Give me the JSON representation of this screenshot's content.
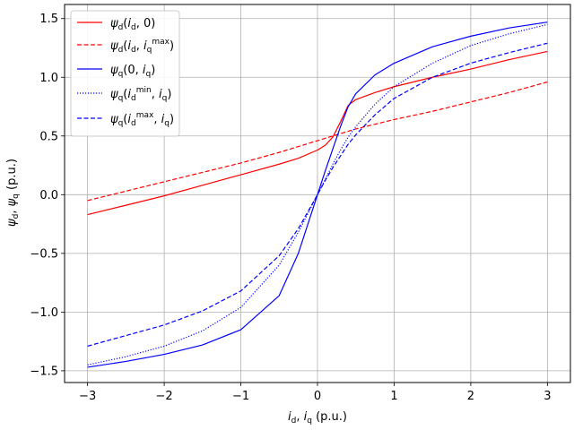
{
  "chart_data": {
    "type": "line",
    "xlabel": "i_d, i_q (p.u.)",
    "ylabel": "ψ_d, ψ_q (p.u.)",
    "xlim": [
      -3.3,
      3.3
    ],
    "ylim": [
      -1.6,
      1.62
    ],
    "xticks": [
      -3,
      -2,
      -1,
      0,
      1,
      2,
      3
    ],
    "xtick_labels": [
      "−3",
      "−2",
      "−1",
      "0",
      "1",
      "2",
      "3"
    ],
    "yticks": [
      -1.5,
      -1.0,
      -0.5,
      0.0,
      0.5,
      1.0,
      1.5
    ],
    "ytick_labels": [
      "−1.5",
      "−1.0",
      "−0.5",
      "0.0",
      "0.5",
      "1.0",
      "1.5"
    ],
    "grid": true,
    "legend_placement": "top-left",
    "x": [
      -3,
      -2.5,
      -2,
      -1.5,
      -1,
      -0.5,
      -0.25,
      0,
      0.1,
      0.2,
      0.3,
      0.4,
      0.5,
      0.75,
      1,
      1.5,
      2,
      2.5,
      3
    ],
    "series": [
      {
        "name": "ψd(id, 0)",
        "color": "#ff0000",
        "dash": "solid",
        "values": [
          -0.17,
          -0.09,
          -0.01,
          0.08,
          0.17,
          0.26,
          0.31,
          0.38,
          0.42,
          0.49,
          0.62,
          0.76,
          0.81,
          0.87,
          0.92,
          1.0,
          1.07,
          1.15,
          1.22
        ]
      },
      {
        "name": "ψd(id, iqmax)",
        "color": "#ff0000",
        "dash": "dashed",
        "values": [
          -0.05,
          0.03,
          0.11,
          0.19,
          0.27,
          0.36,
          0.41,
          0.46,
          0.48,
          0.5,
          0.52,
          0.54,
          0.56,
          0.6,
          0.64,
          0.71,
          0.79,
          0.87,
          0.96
        ]
      },
      {
        "name": "ψq(0, iq)",
        "color": "#0000ff",
        "dash": "solid",
        "values": [
          -1.47,
          -1.42,
          -1.36,
          -1.28,
          -1.15,
          -0.86,
          -0.5,
          0.0,
          0.2,
          0.39,
          0.58,
          0.75,
          0.86,
          1.02,
          1.12,
          1.26,
          1.35,
          1.42,
          1.47
        ]
      },
      {
        "name": "ψq(idmin, iq)",
        "color": "#0000ff",
        "dash": "dotted",
        "values": [
          -1.45,
          -1.38,
          -1.29,
          -1.16,
          -0.96,
          -0.6,
          -0.32,
          0.0,
          0.13,
          0.26,
          0.38,
          0.49,
          0.58,
          0.77,
          0.92,
          1.12,
          1.27,
          1.37,
          1.45
        ]
      },
      {
        "name": "ψq(idmax, iq)",
        "color": "#0000ff",
        "dash": "dashed",
        "values": [
          -1.29,
          -1.2,
          -1.11,
          -0.99,
          -0.82,
          -0.52,
          -0.29,
          0.0,
          0.12,
          0.23,
          0.33,
          0.43,
          0.51,
          0.68,
          0.82,
          1.0,
          1.12,
          1.21,
          1.29
        ]
      }
    ]
  }
}
